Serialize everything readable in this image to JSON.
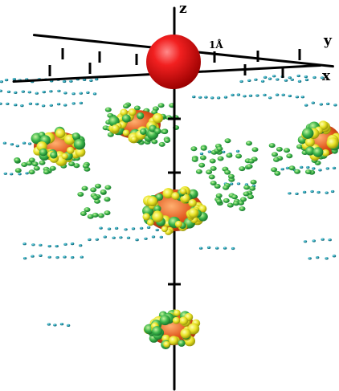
{
  "labels": {
    "z_axis": "z",
    "y_axis": "y",
    "x_axis": "x",
    "scale": "1Å"
  },
  "colors": {
    "background": "#ffffff",
    "axis": "#000000",
    "central_atom": "#e31414",
    "lobe_core": "#d9441a",
    "lobe_outer": "#f5e12a",
    "grid_green": "#33b24a",
    "grid_teal": "#1e8e9e"
  }
}
